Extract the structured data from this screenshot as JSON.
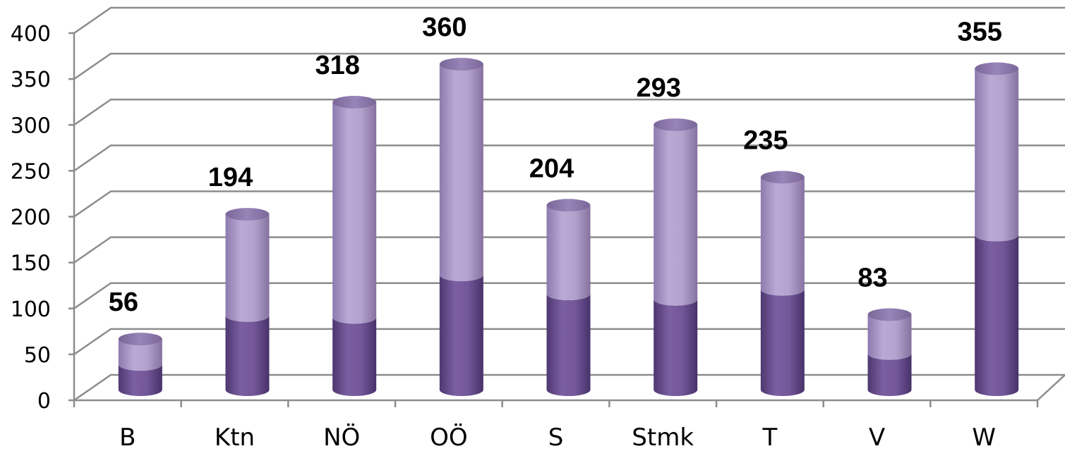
{
  "chart_data": {
    "type": "bar",
    "style": "3d-stacked-cylinder",
    "categories": [
      "B",
      "Ktn",
      "NÖ",
      "OÖ",
      "S",
      "Stmk",
      "T",
      "V",
      "W"
    ],
    "series": [
      {
        "values": [
          28,
          82,
          80,
          127,
          106,
          100,
          111,
          40,
          171
        ],
        "color": "#6a4f8e"
      },
      {
        "values": [
          28,
          112,
          238,
          233,
          98,
          193,
          124,
          43,
          184
        ],
        "color": "#a896c6"
      }
    ],
    "totals": [
      56,
      194,
      318,
      360,
      204,
      293,
      235,
      83,
      355
    ],
    "ylim": [
      0,
      400
    ],
    "yticks": [
      0,
      50,
      100,
      150,
      200,
      250,
      300,
      350,
      400
    ],
    "grid": true,
    "legend": "none",
    "title": "",
    "xlabel": "",
    "ylabel": ""
  }
}
